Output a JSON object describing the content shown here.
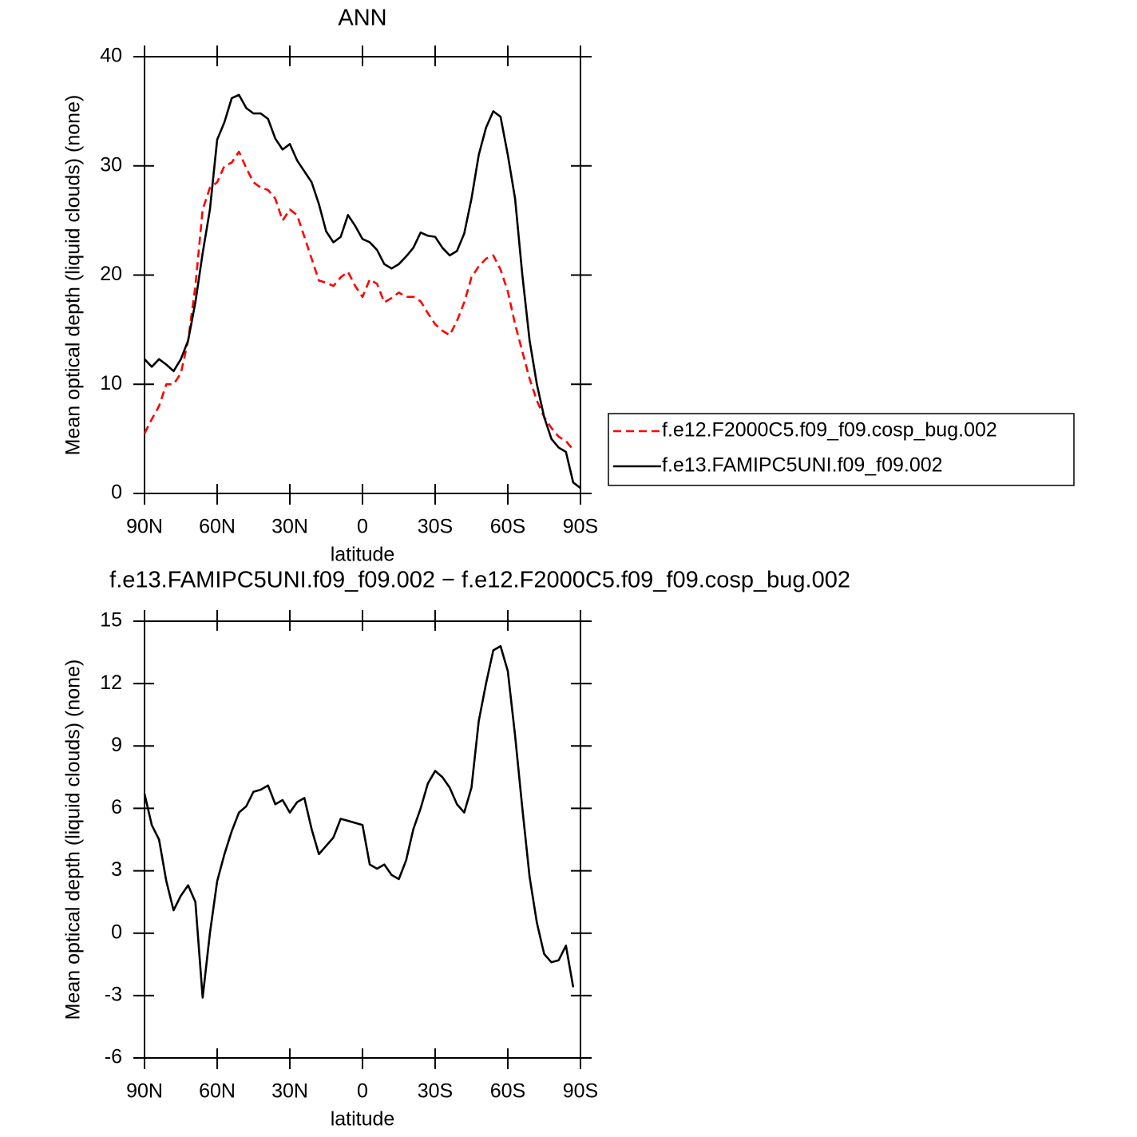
{
  "chart_data": [
    {
      "type": "line",
      "title": "ANN",
      "xlabel": "latitude",
      "ylabel": "Mean optical depth (liquid clouds) (none)",
      "x": [
        90,
        87,
        84,
        81,
        78,
        75,
        72,
        69,
        66,
        63,
        60,
        57,
        54,
        51,
        48,
        45,
        42,
        39,
        36,
        33,
        30,
        27,
        24,
        21,
        18,
        15,
        12,
        9,
        6,
        3,
        0,
        -3,
        -6,
        -9,
        -12,
        -15,
        -18,
        -21,
        -24,
        -27,
        -30,
        -33,
        -36,
        -39,
        -42,
        -45,
        -48,
        -51,
        -54,
        -57,
        -60,
        -63,
        -66,
        -69,
        -72,
        -75,
        -78,
        -81,
        -84,
        -87,
        -90
      ],
      "xlim": [
        90,
        -90
      ],
      "xticks": [
        {
          "value": 90,
          "label": "90N"
        },
        {
          "value": 60,
          "label": "60N"
        },
        {
          "value": 30,
          "label": "30N"
        },
        0,
        {
          "value": -30,
          "label": "30S"
        },
        {
          "value": -60,
          "label": "60S"
        },
        {
          "value": -90,
          "label": "90S"
        }
      ],
      "ylim": [
        0,
        40
      ],
      "yticks": [
        0,
        10,
        20,
        30,
        40
      ],
      "legend": "right",
      "series": [
        {
          "name": "f.e12.F2000C5.f09_f09.cosp_bug.002",
          "color": "#ff0000",
          "style": "dashed",
          "values": [
            5.5,
            6.8,
            8,
            10,
            10,
            11,
            14,
            19,
            26,
            28,
            28.5,
            30,
            30.3,
            31.3,
            29.8,
            28.5,
            28,
            27.8,
            27,
            25,
            26,
            25.5,
            23.5,
            21.5,
            19.5,
            19.3,
            19,
            19.8,
            20.3,
            19,
            18,
            19.6,
            19.2,
            17.5,
            17.9,
            18.4,
            18,
            18,
            17.6,
            16.5,
            15.5,
            14.9,
            14.5,
            15.8,
            17.5,
            19.8,
            20.8,
            21.5,
            21.8,
            20.5,
            18.5,
            15.5,
            13,
            10.5,
            8.5,
            7,
            6,
            5.2,
            4.8,
            4,
            null
          ]
        },
        {
          "name": "f.e13.FAMIPC5UNI.f09_f09.002",
          "color": "#000000",
          "style": "solid",
          "values": [
            12.3,
            11.6,
            12.3,
            11.8,
            11.2,
            12.3,
            14,
            17.5,
            22,
            26,
            32.4,
            34,
            36.2,
            36.5,
            35.3,
            34.8,
            34.8,
            34.3,
            32.5,
            31.5,
            32,
            30.5,
            29.5,
            28.5,
            26.5,
            24,
            23,
            23.5,
            25.5,
            24.5,
            23.3,
            23,
            22.3,
            21,
            20.6,
            21,
            21.7,
            22.5,
            23.9,
            23.6,
            23.5,
            22.5,
            21.8,
            22.2,
            23.8,
            27,
            31,
            33.5,
            35,
            34.5,
            31,
            27,
            20,
            14,
            10,
            7,
            5,
            4.2,
            3.8,
            1,
            0.5
          ]
        }
      ]
    },
    {
      "type": "line",
      "title": "f.e13.FAMIPC5UNI.f09_f09.002 − f.e12.F2000C5.f09_f09.cosp_bug.002",
      "xlabel": "latitude",
      "ylabel": "Mean optical depth (liquid clouds) (none)",
      "x": [
        90,
        87,
        84,
        81,
        78,
        75,
        72,
        69,
        66,
        63,
        60,
        57,
        54,
        51,
        48,
        45,
        42,
        39,
        36,
        33,
        30,
        27,
        24,
        21,
        18,
        15,
        12,
        9,
        6,
        3,
        0,
        -3,
        -6,
        -9,
        -12,
        -15,
        -18,
        -21,
        -24,
        -27,
        -30,
        -33,
        -36,
        -39,
        -42,
        -45,
        -48,
        -51,
        -54,
        -57,
        -60,
        -63,
        -66,
        -69,
        -72,
        -75,
        -78,
        -81,
        -84,
        -87
      ],
      "xlim": [
        90,
        -90
      ],
      "xticks": [
        {
          "value": 90,
          "label": "90N"
        },
        {
          "value": 60,
          "label": "60N"
        },
        {
          "value": 30,
          "label": "30N"
        },
        0,
        {
          "value": -30,
          "label": "30S"
        },
        {
          "value": -60,
          "label": "60S"
        },
        {
          "value": -90,
          "label": "90S"
        }
      ],
      "ylim": [
        -6,
        15
      ],
      "yticks": [
        -6,
        -3,
        0,
        3,
        6,
        9,
        12,
        15
      ],
      "color": "#000000",
      "values": [
        6.7,
        5.2,
        4.5,
        2.5,
        1.1,
        1.8,
        2.3,
        1.5,
        -3.1,
        0,
        2.5,
        3.8,
        4.9,
        5.8,
        6.1,
        6.8,
        6.9,
        7.1,
        6.2,
        6.4,
        5.8,
        6.3,
        6.5,
        5,
        3.8,
        4.2,
        4.6,
        5.5,
        5.4,
        5.3,
        5.2,
        3.3,
        3.1,
        3.3,
        2.8,
        2.6,
        3.5,
        5,
        6,
        7.2,
        7.8,
        7.5,
        7,
        6.2,
        5.8,
        7,
        10.2,
        12,
        13.6,
        13.8,
        12.6,
        9.5,
        6,
        2.7,
        0.5,
        -1,
        -1.4,
        -1.3,
        -0.6,
        -2.6
      ]
    }
  ]
}
